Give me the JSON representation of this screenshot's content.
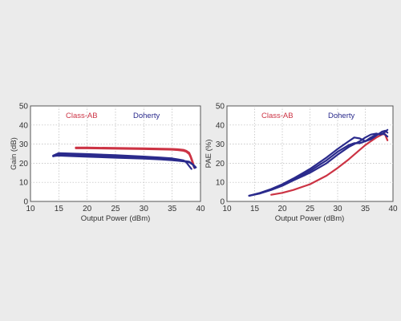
{
  "colors": {
    "class_ab": "#cc3344",
    "doherty": "#2a2a8c"
  },
  "chart_data": [
    {
      "type": "line",
      "title": "",
      "xlabel": "Output Power (dBm)",
      "ylabel": "Gain (dB)",
      "xlim": [
        10,
        40
      ],
      "ylim": [
        0,
        50
      ],
      "xticks": [
        "10",
        "15",
        "20",
        "25",
        "30",
        "35",
        "40"
      ],
      "yticks": [
        "0",
        "10",
        "20",
        "30",
        "40",
        "50"
      ],
      "grid": true,
      "legend": [
        "Class-AB",
        "Doherty"
      ],
      "series": [
        {
          "name": "Class-AB",
          "color_key": "class_ab",
          "x": [
            18,
            20,
            25,
            30,
            35,
            36,
            37,
            37.5,
            38,
            38.3,
            38.6,
            38.9
          ],
          "y": [
            28.2,
            28.2,
            28.0,
            27.8,
            27.5,
            27.3,
            27.0,
            26.5,
            25.5,
            23.5,
            21.0,
            18.0
          ]
        },
        {
          "name": "Class-AB",
          "color_key": "class_ab",
          "x": [
            18,
            20,
            25,
            30,
            35,
            36,
            37,
            37.5,
            38,
            38.3,
            38.6,
            38.9
          ],
          "y": [
            27.8,
            27.8,
            27.6,
            27.4,
            27.1,
            26.9,
            26.5,
            26.0,
            24.8,
            22.8,
            20.0,
            17.5
          ]
        },
        {
          "name": "Doherty",
          "color_key": "doherty",
          "x": [
            14,
            15,
            20,
            25,
            30,
            33,
            35,
            36,
            37,
            37.5,
            38,
            38.4
          ],
          "y": [
            24.0,
            25.3,
            24.8,
            24.2,
            23.5,
            23.0,
            22.5,
            22.0,
            21.5,
            20.5,
            18.5,
            17.0
          ]
        },
        {
          "name": "Doherty",
          "color_key": "doherty",
          "x": [
            14,
            15,
            20,
            25,
            30,
            33,
            35,
            36,
            37,
            38,
            38.6,
            39.0
          ],
          "y": [
            23.6,
            24.5,
            24.0,
            23.5,
            23.0,
            22.5,
            22.0,
            21.6,
            21.2,
            20.8,
            19.5,
            17.5
          ]
        },
        {
          "name": "Doherty",
          "color_key": "doherty",
          "x": [
            14,
            15,
            20,
            25,
            30,
            33,
            35,
            36,
            37,
            38,
            38.8,
            39.2
          ],
          "y": [
            23.8,
            24.0,
            23.4,
            22.9,
            22.4,
            22.0,
            21.6,
            21.3,
            21.0,
            20.5,
            19.0,
            17.8
          ]
        }
      ]
    },
    {
      "type": "line",
      "title": "",
      "xlabel": "Output Power (dBm)",
      "ylabel": "PAE (%)",
      "xlim": [
        10,
        40
      ],
      "ylim": [
        0,
        50
      ],
      "xticks": [
        "10",
        "15",
        "20",
        "25",
        "30",
        "35",
        "40"
      ],
      "yticks": [
        "0",
        "10",
        "20",
        "30",
        "40",
        "50"
      ],
      "grid": true,
      "legend": [
        "Class-AB",
        "Doherty"
      ],
      "series": [
        {
          "name": "Class-AB",
          "color_key": "class_ab",
          "x": [
            18,
            20,
            22,
            25,
            28,
            30,
            32,
            34,
            35,
            36,
            37,
            38,
            38.5,
            39
          ],
          "y": [
            3.5,
            4.5,
            6.0,
            9.0,
            13.5,
            17.5,
            22.0,
            27.0,
            29.5,
            31.5,
            33.5,
            35.0,
            35.5,
            32.0
          ]
        },
        {
          "name": "Doherty",
          "color_key": "doherty",
          "x": [
            14,
            16,
            18,
            20,
            22,
            25,
            28,
            30,
            32,
            33,
            34,
            35,
            36,
            37,
            38,
            38.6,
            39
          ],
          "y": [
            3.0,
            4.5,
            6.5,
            9.0,
            12.0,
            17.0,
            23.0,
            27.5,
            31.5,
            33.5,
            33.0,
            31.5,
            32.5,
            34.5,
            36.5,
            37.0,
            36.0
          ]
        },
        {
          "name": "Doherty",
          "color_key": "doherty",
          "x": [
            14,
            16,
            18,
            20,
            22,
            25,
            28,
            30,
            32,
            33,
            34,
            35,
            36,
            37,
            38,
            38.6,
            39
          ],
          "y": [
            3.0,
            4.3,
            6.2,
            8.5,
            11.5,
            16.0,
            21.5,
            26.0,
            29.5,
            30.5,
            30.5,
            31.5,
            33.5,
            35.0,
            35.5,
            35.0,
            34.0
          ]
        },
        {
          "name": "Doherty",
          "color_key": "doherty",
          "x": [
            14,
            16,
            18,
            20,
            22,
            25,
            28,
            30,
            32,
            34,
            35,
            36,
            37,
            37.8,
            38.4,
            39
          ],
          "y": [
            3.0,
            4.2,
            6.0,
            8.2,
            11.0,
            15.0,
            20.0,
            24.5,
            28.5,
            31.5,
            33.5,
            35.0,
            35.5,
            35.0,
            36.0,
            37.5
          ]
        }
      ]
    }
  ]
}
